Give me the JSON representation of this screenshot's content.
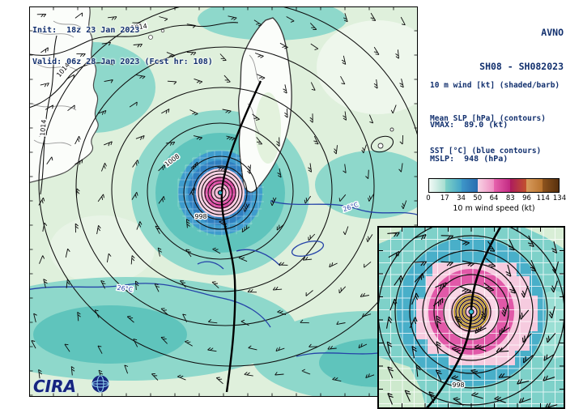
{
  "header": {
    "init": "Init:  18z 23 Jan 2023",
    "valid": "Valid: 06z 28 Jan 2023 (Fcst hr: 108)"
  },
  "title": {
    "model": "AVNO",
    "storm": "SH08 - SH082023"
  },
  "legend": {
    "shading": "10 m wind [kt] (shaded/barb)",
    "slp": "Mean SLP [hPa] (contours)",
    "sst": "SST [°C] (blue contours)",
    "vmax": "VMAX:  89.0 (kt)",
    "mslp": "MSLP:  948 (hPa)"
  },
  "colorbar": {
    "caption": "10 m wind speed (kt)",
    "ticks": [
      "0",
      "17",
      "34",
      "50",
      "64",
      "83",
      "96",
      "114",
      "134"
    ],
    "segments": [
      {
        "c1": "#f2faf6",
        "c2": "#a6ddd0"
      },
      {
        "c1": "#7fd2c6",
        "c2": "#44a4c8"
      },
      {
        "c1": "#3e97c9",
        "c2": "#2a6cb0"
      },
      {
        "c1": "#f8d3e4",
        "c2": "#ee8ec2"
      },
      {
        "c1": "#e763ad",
        "c2": "#c22a82"
      },
      {
        "c1": "#ad1b5e",
        "c2": "#c2512d"
      },
      {
        "c1": "#d79a5c",
        "c2": "#b9742f"
      },
      {
        "c1": "#8f541e",
        "c2": "#57300d"
      }
    ]
  },
  "map": {
    "slp_labels": [
      {
        "text": "1014"
      },
      {
        "text": "1014"
      },
      {
        "text": "1008"
      },
      {
        "text": "998"
      },
      {
        "text": "1014"
      }
    ],
    "sst_labels": [
      {
        "text": "26°C"
      },
      {
        "text": "26°C"
      }
    ],
    "logo": "CIRA"
  },
  "inset": {
    "slp_label": "998"
  }
}
